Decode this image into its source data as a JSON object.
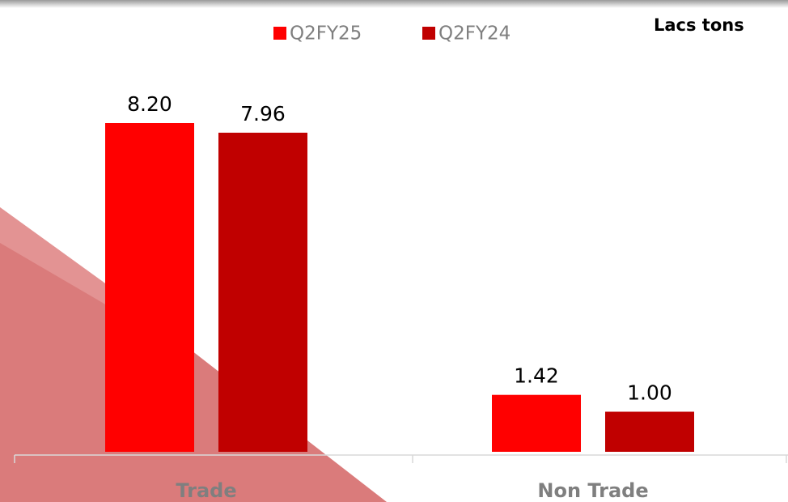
{
  "chart_data": {
    "type": "bar",
    "unit_label": "Lacs tons",
    "categories": [
      "Trade",
      "Non Trade"
    ],
    "series": [
      {
        "name": "Q2FY25",
        "color": "#ff0000",
        "values": [
          8.2,
          1.42
        ],
        "value_labels": [
          "8.20",
          "1.42"
        ]
      },
      {
        "name": "Q2FY24",
        "color": "#c00000",
        "values": [
          7.96,
          1.0
        ],
        "value_labels": [
          "7.96",
          "1.00"
        ]
      }
    ],
    "legend": "top"
  }
}
